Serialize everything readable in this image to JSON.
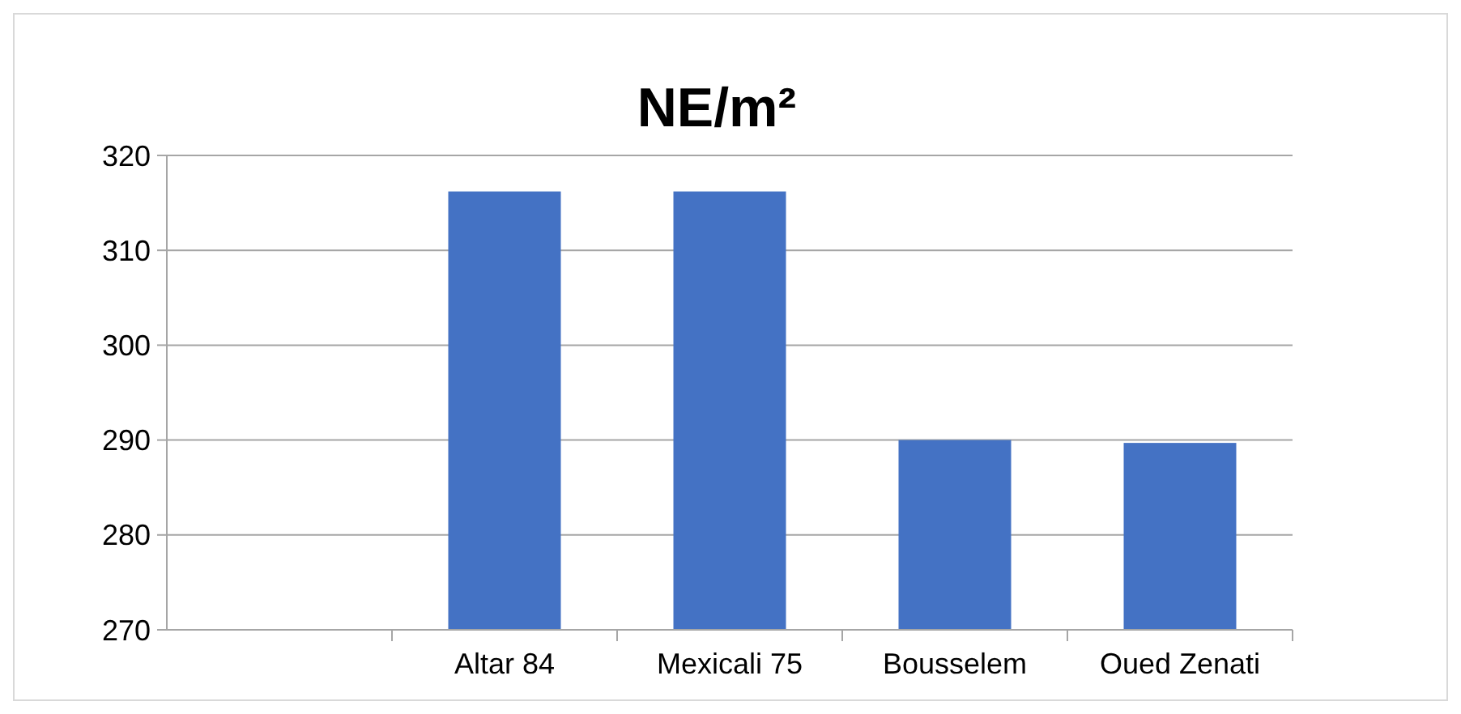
{
  "chart_data": {
    "type": "bar",
    "title": "NE/m²",
    "categories": [
      null,
      "Altar 84",
      "Mexicali 75",
      "Bousselem",
      "Oued Zenati"
    ],
    "values": [
      null,
      316.2,
      316.2,
      290,
      289.7
    ],
    "color": "#4472c4",
    "ylim": [
      270,
      320
    ],
    "yticks": [
      270,
      280,
      290,
      300,
      310,
      320
    ],
    "grid": "y"
  }
}
